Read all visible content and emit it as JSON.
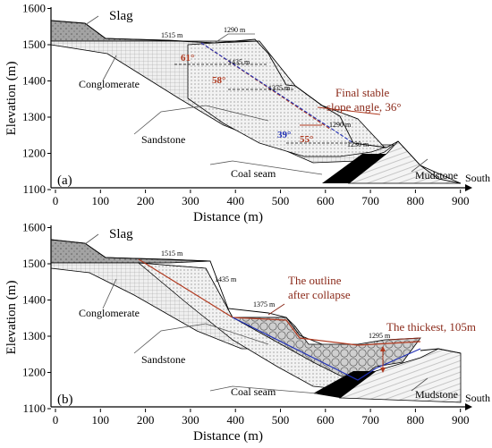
{
  "panels": [
    {
      "id": "a",
      "panel_label": "(a)",
      "x_axis_label": "Distance (m)",
      "y_axis_label": "Elevation (m)",
      "x_ticks": [
        "0",
        "100",
        "200",
        "300",
        "400",
        "500",
        "600",
        "700",
        "800",
        "900"
      ],
      "y_ticks": [
        "1100",
        "1200",
        "1300",
        "1400",
        "1500",
        "1600"
      ],
      "direction": "South",
      "labels": {
        "slag": "Slag",
        "conglomerate": "Conglomerate",
        "sandstone": "Sandstone",
        "coal_seam": "Coal seam",
        "mudstone": "Mudstone",
        "e1515": "1515 m",
        "e1290_top": "1290 m",
        "e1435": "1435 m",
        "e1375": "1375 m",
        "e1290": "1290 m",
        "e1230": "1230 m",
        "angle61": "61°",
        "angle58": "58°",
        "angle39": "39°",
        "angle55": "55°",
        "callout_line1": "Final stable",
        "callout_line2": "slope angle, 36°"
      }
    },
    {
      "id": "b",
      "panel_label": "(b)",
      "x_axis_label": "Distance (m)",
      "y_axis_label": "Elevation (m)",
      "x_ticks": [
        "0",
        "100",
        "200",
        "300",
        "400",
        "500",
        "600",
        "700",
        "800",
        "900"
      ],
      "y_ticks": [
        "1100",
        "1200",
        "1300",
        "1400",
        "1500",
        "1600"
      ],
      "direction": "South",
      "labels": {
        "slag": "Slag",
        "conglomerate": "Conglomerate",
        "sandstone": "Sandstone",
        "coal_seam": "Coal seam",
        "mudstone": "Mudstone",
        "e1515": "1515 m",
        "e1435": "1435 m",
        "e1375": "1375 m",
        "e1295": "1295 m",
        "callout1_line1": "The outline",
        "callout1_line2": "after collapse",
        "callout2": "The thickest, 105m"
      }
    }
  ],
  "colors": {
    "outline_red": "#b0391f",
    "outline_blue": "#1f2fb5",
    "callout_red": "#8b2a1a",
    "angle_red": "#b0391f",
    "slag": "#9a9a9a",
    "coal": "#000000"
  }
}
